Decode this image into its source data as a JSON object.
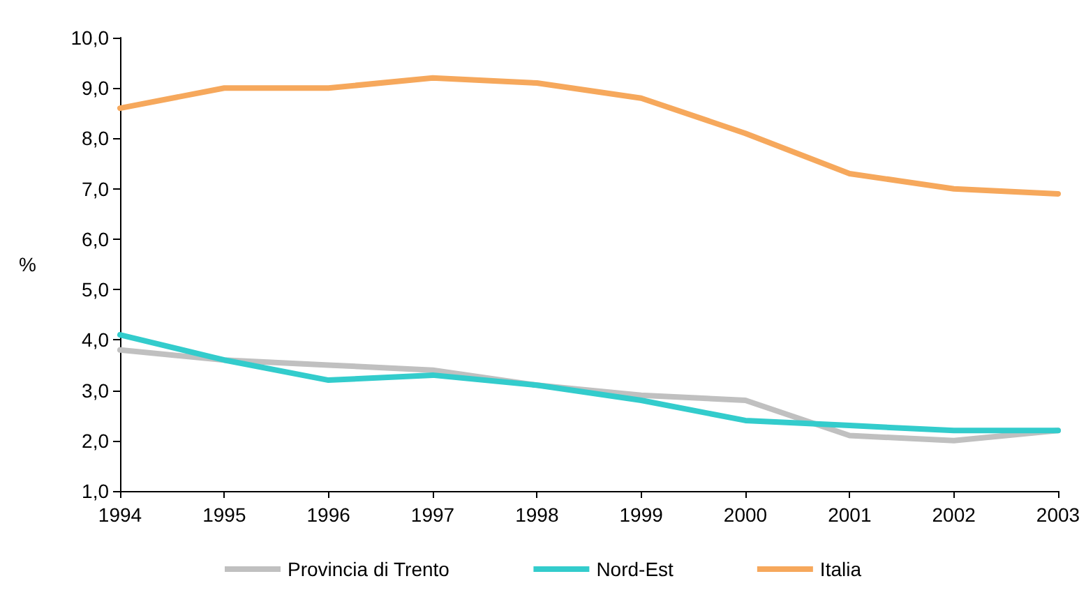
{
  "chart_data": {
    "type": "line",
    "ylabel": "%",
    "categories": [
      "1994",
      "1995",
      "1996",
      "1997",
      "1998",
      "1999",
      "2000",
      "2001",
      "2002",
      "2003"
    ],
    "series": [
      {
        "name": "Provincia di Trento",
        "color": "#c0c0c0",
        "values": [
          3.8,
          3.6,
          3.5,
          3.4,
          3.1,
          2.9,
          2.8,
          2.1,
          2.0,
          2.2
        ]
      },
      {
        "name": "Nord-Est",
        "color": "#33cccc",
        "values": [
          4.1,
          3.6,
          3.2,
          3.3,
          3.1,
          2.8,
          2.4,
          2.3,
          2.2,
          2.2
        ]
      },
      {
        "name": "Italia",
        "color": "#f6a85c",
        "values": [
          8.6,
          9.0,
          9.0,
          9.2,
          9.1,
          8.8,
          8.1,
          7.3,
          7.0,
          6.9
        ]
      }
    ],
    "ylim": [
      1,
      10
    ],
    "yticks": [
      {
        "value": 1,
        "label": "1,0"
      },
      {
        "value": 2,
        "label": "2,0"
      },
      {
        "value": 3,
        "label": "3,0"
      },
      {
        "value": 4,
        "label": "4,0"
      },
      {
        "value": 5,
        "label": "5,0"
      },
      {
        "value": 6,
        "label": "6,0"
      },
      {
        "value": 7,
        "label": "7,0"
      },
      {
        "value": 8,
        "label": "8,0"
      },
      {
        "value": 9,
        "label": "9,0"
      },
      {
        "value": 10,
        "label": "10,0"
      }
    ],
    "grid": false,
    "legend": "bottom",
    "marker": "none",
    "line_style": "solid"
  }
}
